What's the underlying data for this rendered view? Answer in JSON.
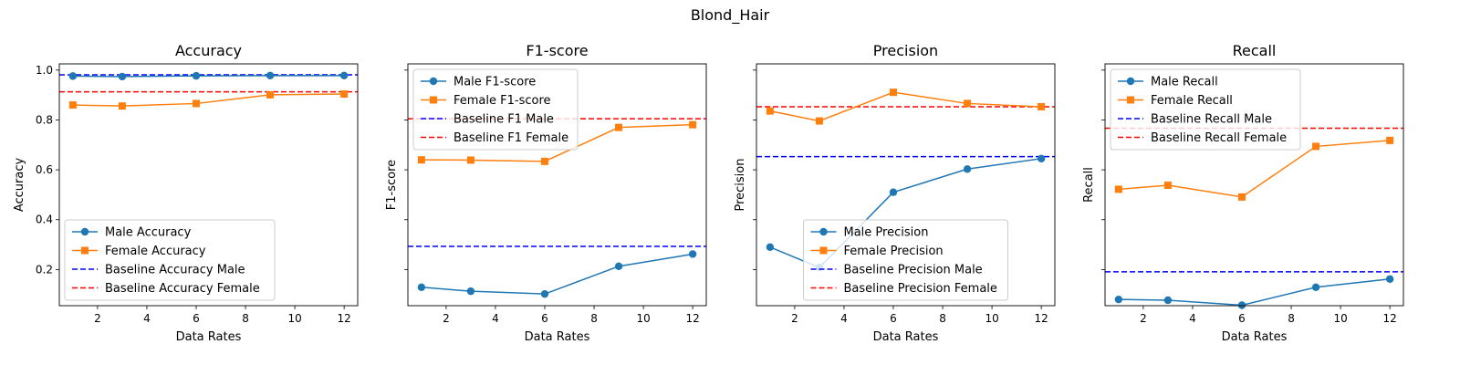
{
  "suptitle": "Blond_Hair",
  "colors": {
    "male": "#1f77b4",
    "female": "#ff7f0e",
    "baseline_male": "#0000ff",
    "baseline_female": "#ff0000"
  },
  "chart_data": [
    {
      "type": "line",
      "title": "Accuracy",
      "xlabel": "Data Rates",
      "ylabel": "Accuracy",
      "x": [
        1,
        3,
        6,
        9,
        12
      ],
      "xlim": [
        0.45,
        12.55
      ],
      "ylim": [
        0.055,
        1.025
      ],
      "xticks": [
        2,
        4,
        6,
        8,
        10,
        12
      ],
      "yticks": [
        0.2,
        0.4,
        0.6,
        0.8,
        1.0
      ],
      "ytick_labels": [
        "0.2",
        "0.4",
        "0.6",
        "0.8",
        "1.0"
      ],
      "legend_position": "lower-left",
      "series": [
        {
          "name": "Male Accuracy",
          "kind": "line",
          "marker": "circle",
          "color": "#1f77b4",
          "values": [
            0.976,
            0.974,
            0.977,
            0.978,
            0.978
          ]
        },
        {
          "name": "Female Accuracy",
          "kind": "line",
          "marker": "square",
          "color": "#ff7f0e",
          "values": [
            0.86,
            0.856,
            0.866,
            0.901,
            0.904
          ]
        },
        {
          "name": "Baseline Accuracy Male",
          "kind": "hline",
          "color": "#0000ff",
          "value": 0.981
        },
        {
          "name": "Baseline Accuracy Female",
          "kind": "hline",
          "color": "#ff0000",
          "value": 0.913
        }
      ]
    },
    {
      "type": "line",
      "title": "F1-score",
      "xlabel": "Data Rates",
      "ylabel": "F1-score",
      "x": [
        1,
        3,
        6,
        9,
        12
      ],
      "xlim": [
        0.45,
        12.55
      ],
      "ylim": [
        0.055,
        1.025
      ],
      "xticks": [
        2,
        4,
        6,
        8,
        10,
        12
      ],
      "yticks": [
        0.2,
        0.4,
        0.6,
        0.8,
        1.0
      ],
      "ytick_labels": [
        "",
        "",
        "",
        "",
        ""
      ],
      "legend_position": "upper-left",
      "series": [
        {
          "name": "Male F1-score",
          "kind": "line",
          "marker": "circle",
          "color": "#1f77b4",
          "values": [
            0.129,
            0.113,
            0.102,
            0.213,
            0.262
          ]
        },
        {
          "name": "Female F1-score",
          "kind": "line",
          "marker": "square",
          "color": "#ff7f0e",
          "values": [
            0.64,
            0.639,
            0.634,
            0.77,
            0.781
          ]
        },
        {
          "name": "Baseline F1 Male",
          "kind": "hline",
          "color": "#0000ff",
          "value": 0.293
        },
        {
          "name": "Baseline F1 Female",
          "kind": "hline",
          "color": "#ff0000",
          "value": 0.805
        }
      ]
    },
    {
      "type": "line",
      "title": "Precision",
      "xlabel": "Data Rates",
      "ylabel": "Precision",
      "x": [
        1,
        3,
        6,
        9,
        12
      ],
      "xlim": [
        0.45,
        12.55
      ],
      "ylim": [
        0.055,
        1.025
      ],
      "xticks": [
        2,
        4,
        6,
        8,
        10,
        12
      ],
      "yticks": [
        0.2,
        0.4,
        0.6,
        0.8,
        1.0
      ],
      "ytick_labels": [
        "",
        "",
        "",
        "",
        ""
      ],
      "legend_position": "lower-center",
      "series": [
        {
          "name": "Male Precision",
          "kind": "line",
          "marker": "circle",
          "color": "#1f77b4",
          "values": [
            0.29,
            0.208,
            0.51,
            0.603,
            0.645
          ]
        },
        {
          "name": "Female Precision",
          "kind": "line",
          "marker": "square",
          "color": "#ff7f0e",
          "values": [
            0.836,
            0.796,
            0.911,
            0.866,
            0.853
          ]
        },
        {
          "name": "Baseline Precision Male",
          "kind": "hline",
          "color": "#0000ff",
          "value": 0.653
        },
        {
          "name": "Baseline Precision Female",
          "kind": "hline",
          "color": "#ff0000",
          "value": 0.853
        }
      ]
    },
    {
      "type": "line",
      "title": "Recall",
      "xlabel": "Data Rates",
      "ylabel": "Recall",
      "x": [
        1,
        3,
        6,
        9,
        12
      ],
      "xlim": [
        0.45,
        12.55
      ],
      "ylim": [
        0.055,
        1.025
      ],
      "xticks": [
        2,
        4,
        6,
        8,
        10,
        12
      ],
      "yticks": [
        0.2,
        0.4,
        0.6,
        0.8,
        1.0
      ],
      "ytick_labels": [
        "",
        "",
        "",
        "",
        ""
      ],
      "legend_position": "upper-left",
      "series": [
        {
          "name": "Male Recall",
          "kind": "line",
          "marker": "circle",
          "color": "#1f77b4",
          "values": [
            0.08,
            0.077,
            0.057,
            0.129,
            0.162
          ]
        },
        {
          "name": "Female Recall",
          "kind": "line",
          "marker": "square",
          "color": "#ff7f0e",
          "values": [
            0.522,
            0.538,
            0.491,
            0.694,
            0.718
          ]
        },
        {
          "name": "Baseline Recall Male",
          "kind": "hline",
          "color": "#0000ff",
          "value": 0.191
        },
        {
          "name": "Baseline Recall Female",
          "kind": "hline",
          "color": "#ff0000",
          "value": 0.767
        }
      ]
    }
  ]
}
